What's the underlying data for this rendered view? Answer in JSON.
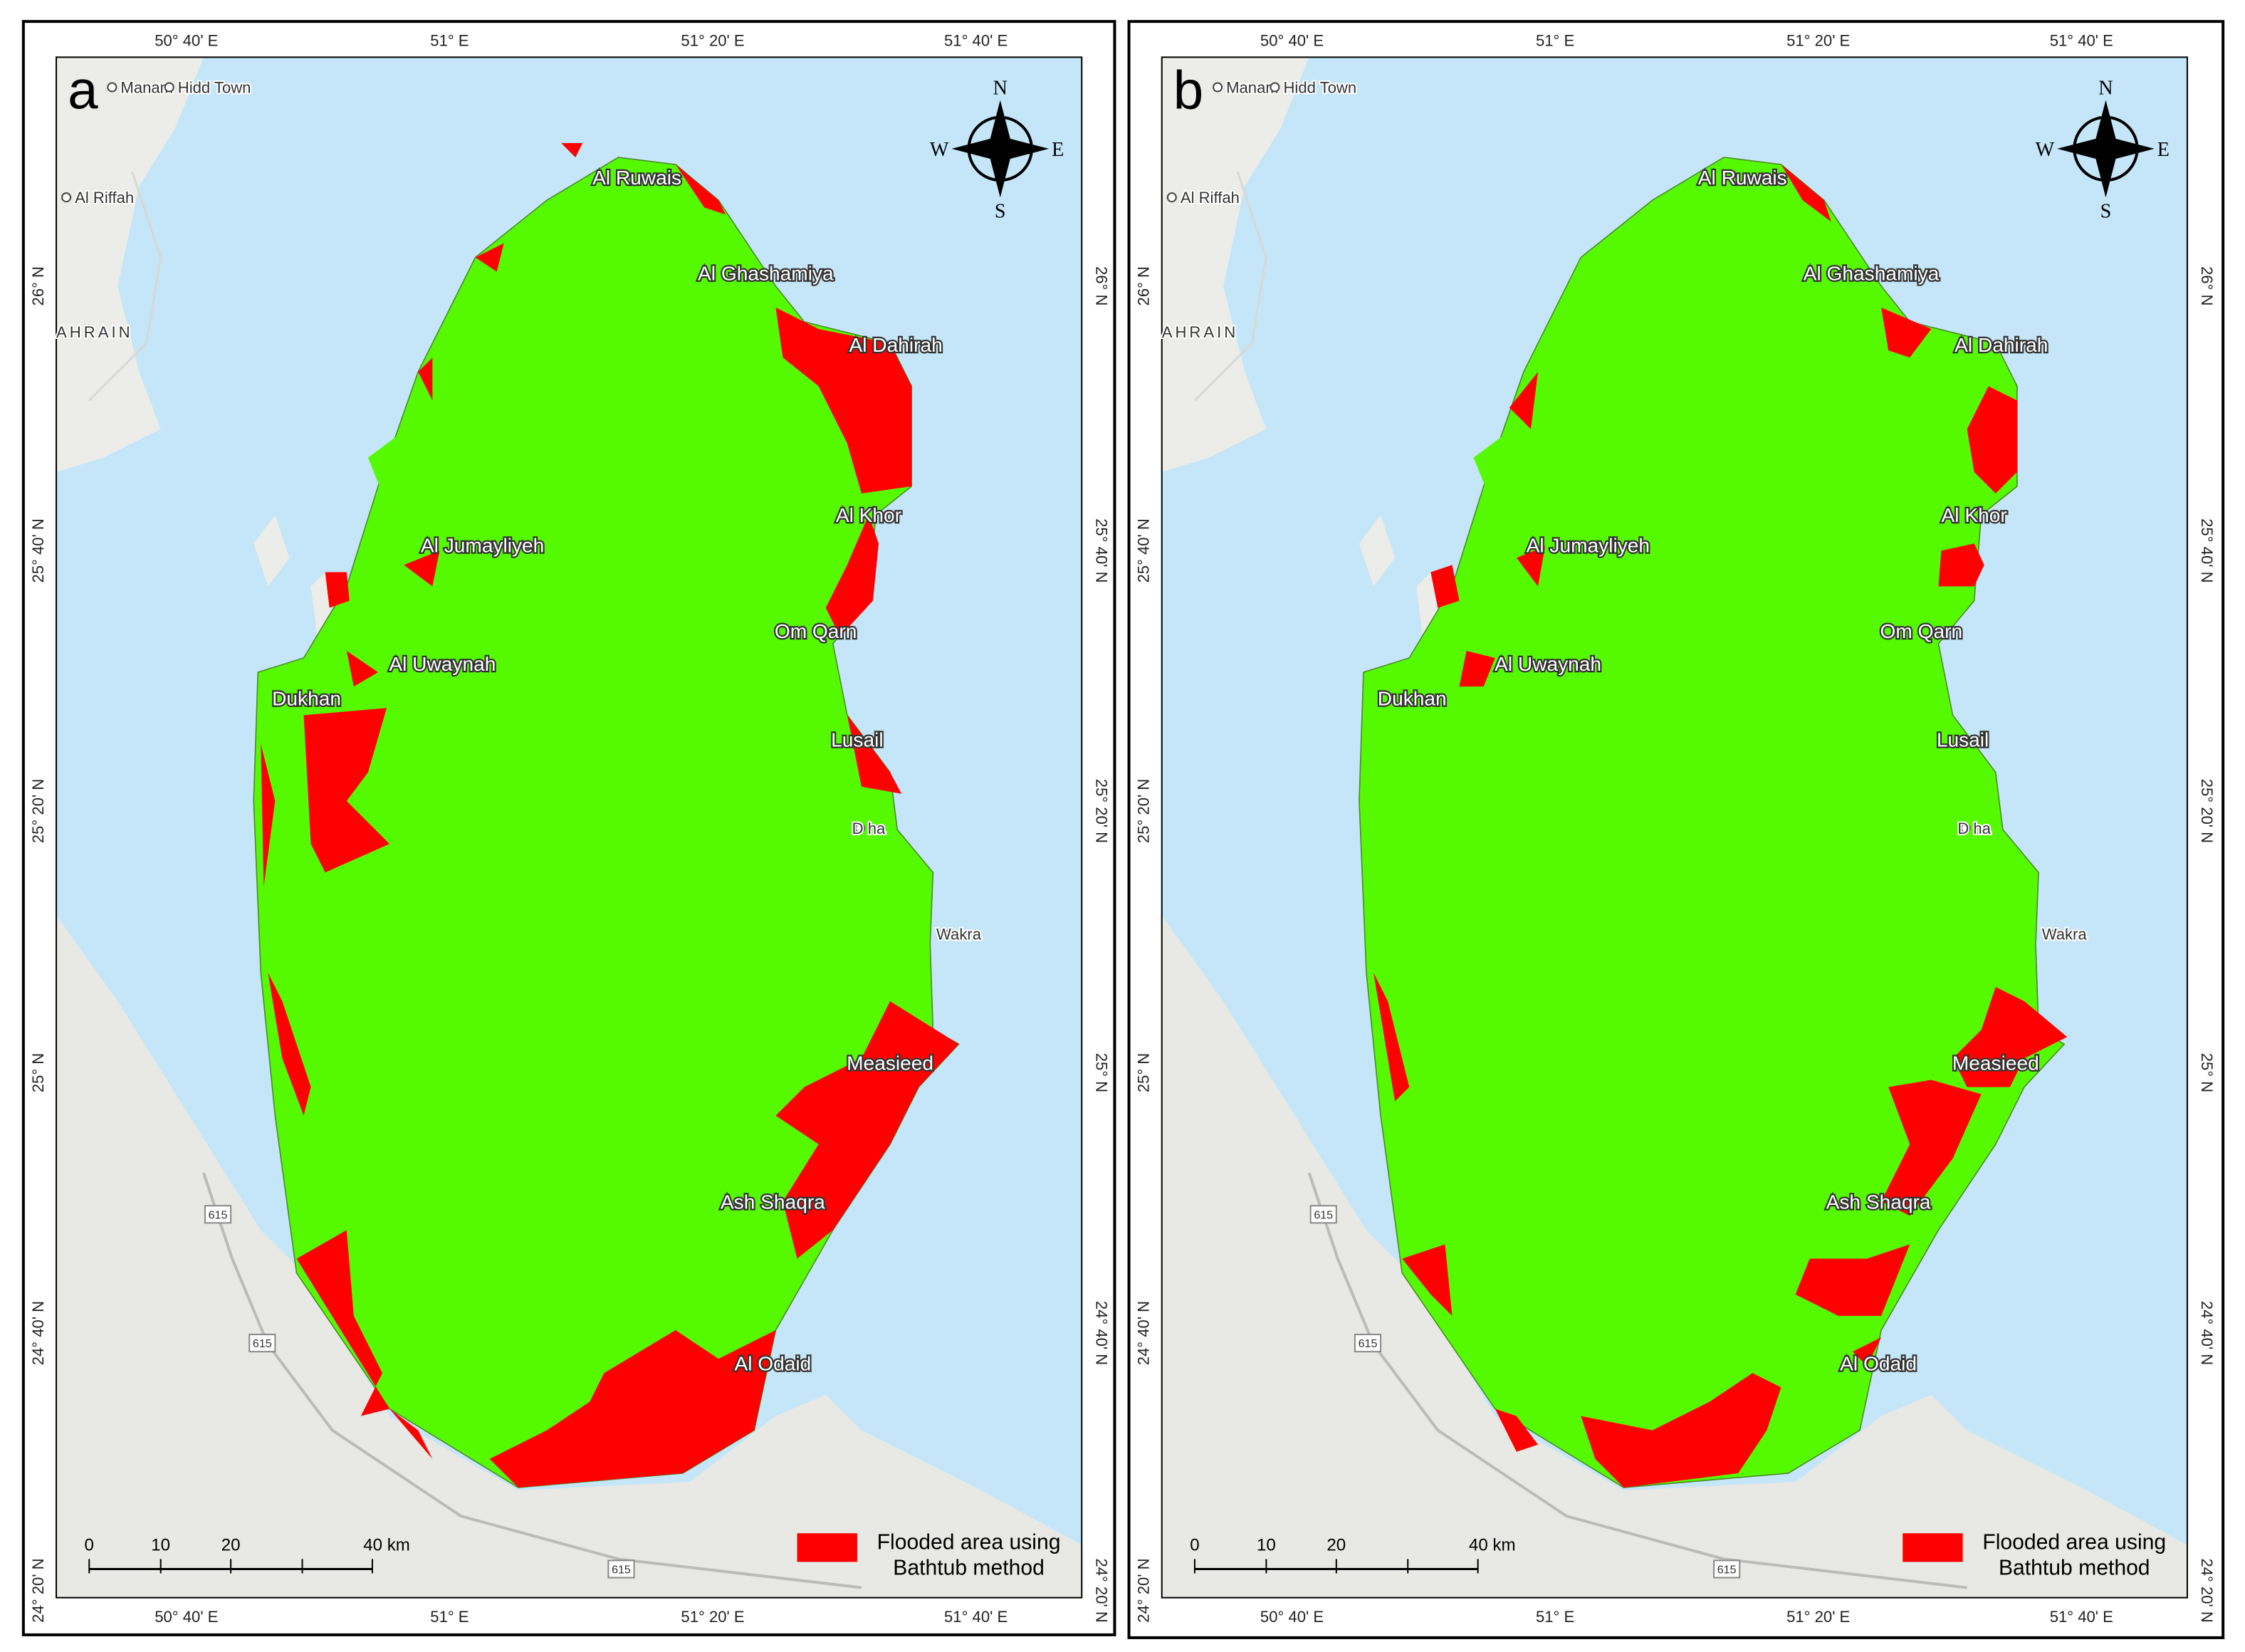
{
  "panels": [
    {
      "label": "a",
      "top_ticks": [
        "50° 40' E",
        "51° E",
        "51° 20' E",
        "51° 40' E"
      ],
      "bottom_ticks": [
        "50° 40' E",
        "51° E",
        "51° 20' E",
        "51° 40' E"
      ],
      "left_ticks": [
        "26° N",
        "25° 40' N",
        "25° 20' N",
        "25° N",
        "24° 40' N",
        "24° 20' N"
      ],
      "right_ticks": [
        "26° N",
        "25° 40' N",
        "25° 20' N",
        "25° N",
        "24° 40' N",
        "24° 20' N"
      ],
      "compass": [
        "N",
        "S",
        "W",
        "E"
      ],
      "places": [
        "Manam",
        "Hidd Town",
        "Al Riffah",
        "AHRAIN",
        "Al Ruwais",
        "Al Ghashamiya",
        "Al Dahirah",
        "Al Khor",
        "Al Jumayliyeh",
        "Om Qarn",
        "Al Uwaynah",
        "Dukhan",
        "Lusail",
        "D ha",
        "Wakra",
        "Measieed",
        "Ash Shaqra",
        "Al Odaid"
      ],
      "roads": [
        "615",
        "615",
        "615"
      ],
      "scale": [
        "0",
        "10",
        "20",
        "40 km"
      ],
      "legend": [
        "Flooded area using",
        "Bathtub method"
      ]
    },
    {
      "label": "b",
      "top_ticks": [
        "50° 40' E",
        "51° E",
        "51° 20' E",
        "51° 40' E"
      ],
      "bottom_ticks": [
        "50° 40' E",
        "51° E",
        "51° 20' E",
        "51° 40' E"
      ],
      "left_ticks": [
        "26° N",
        "25° 40' N",
        "25° 20' N",
        "25° N",
        "24° 40' N",
        "24° 20' N"
      ],
      "right_ticks": [
        "26° N",
        "25° 40' N",
        "25° 20' N",
        "25° N",
        "24° 40' N",
        "24° 20' N"
      ],
      "compass": [
        "N",
        "S",
        "W",
        "E"
      ],
      "places": [
        "Manam",
        "Hidd Town",
        "Al Riffah",
        "AHRAIN",
        "Al Ruwais",
        "Al Ghashamiya",
        "Al Dahirah",
        "Al Khor",
        "Al Jumayliyeh",
        "Om Qarn",
        "Al Uwaynah",
        "Dukhan",
        "Lusail",
        "D ha",
        "Wakra",
        "Measieed",
        "Ash Shaqra",
        "Al Odaid"
      ],
      "roads": [
        "615",
        "615",
        "615"
      ],
      "scale": [
        "0",
        "10",
        "20",
        "40 km"
      ],
      "legend": [
        "Flooded area using",
        "Bathtub method"
      ]
    }
  ]
}
